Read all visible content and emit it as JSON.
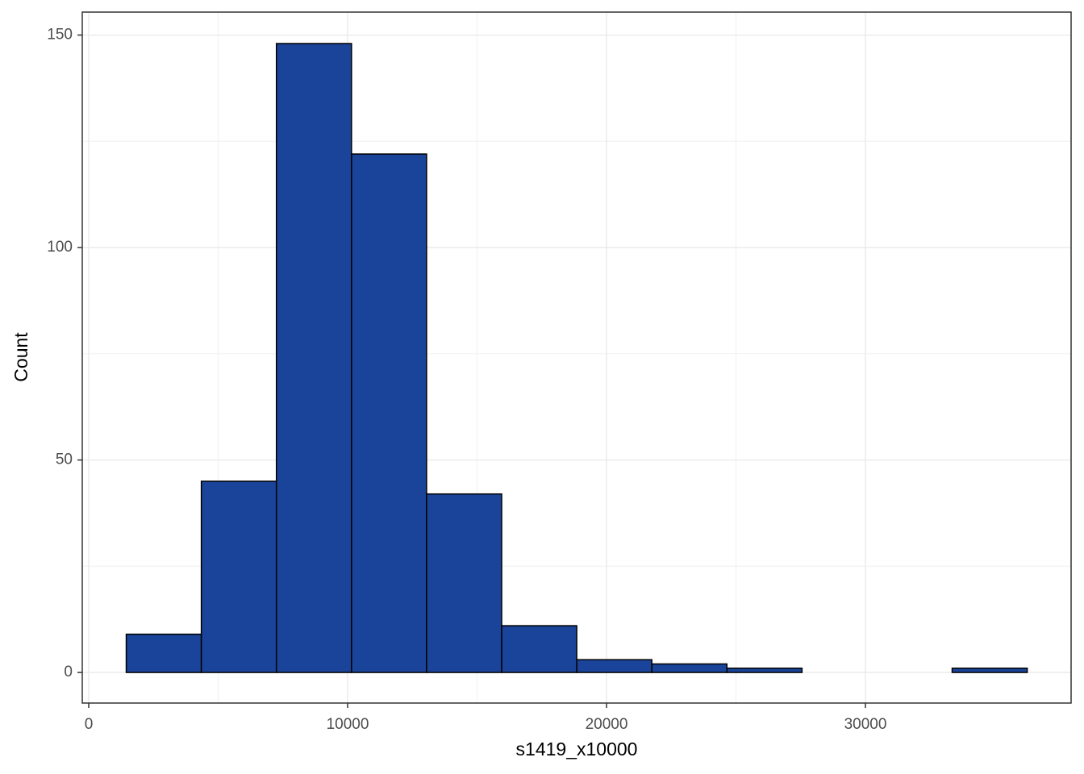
{
  "chart_data": {
    "type": "histogram",
    "x_label": "s1419_x10000",
    "y_label": "Count",
    "bins": [
      1450,
      4350,
      7250,
      10150,
      13050,
      15950,
      18850,
      21750,
      24650,
      27550,
      30450,
      33350,
      36250
    ],
    "counts": [
      9,
      45,
      148,
      122,
      42,
      11,
      3,
      2,
      1,
      0,
      0,
      1
    ],
    "color": "#1a4499",
    "edge_color": "#000000",
    "xlim": [
      -249,
      37944
    ],
    "xticks": [
      0,
      10000,
      20000,
      30000
    ],
    "ylim": [
      -7.2,
      155.4
    ],
    "yticks": [
      0,
      50,
      100,
      150
    ],
    "grid": true,
    "minor_grid": true
  }
}
